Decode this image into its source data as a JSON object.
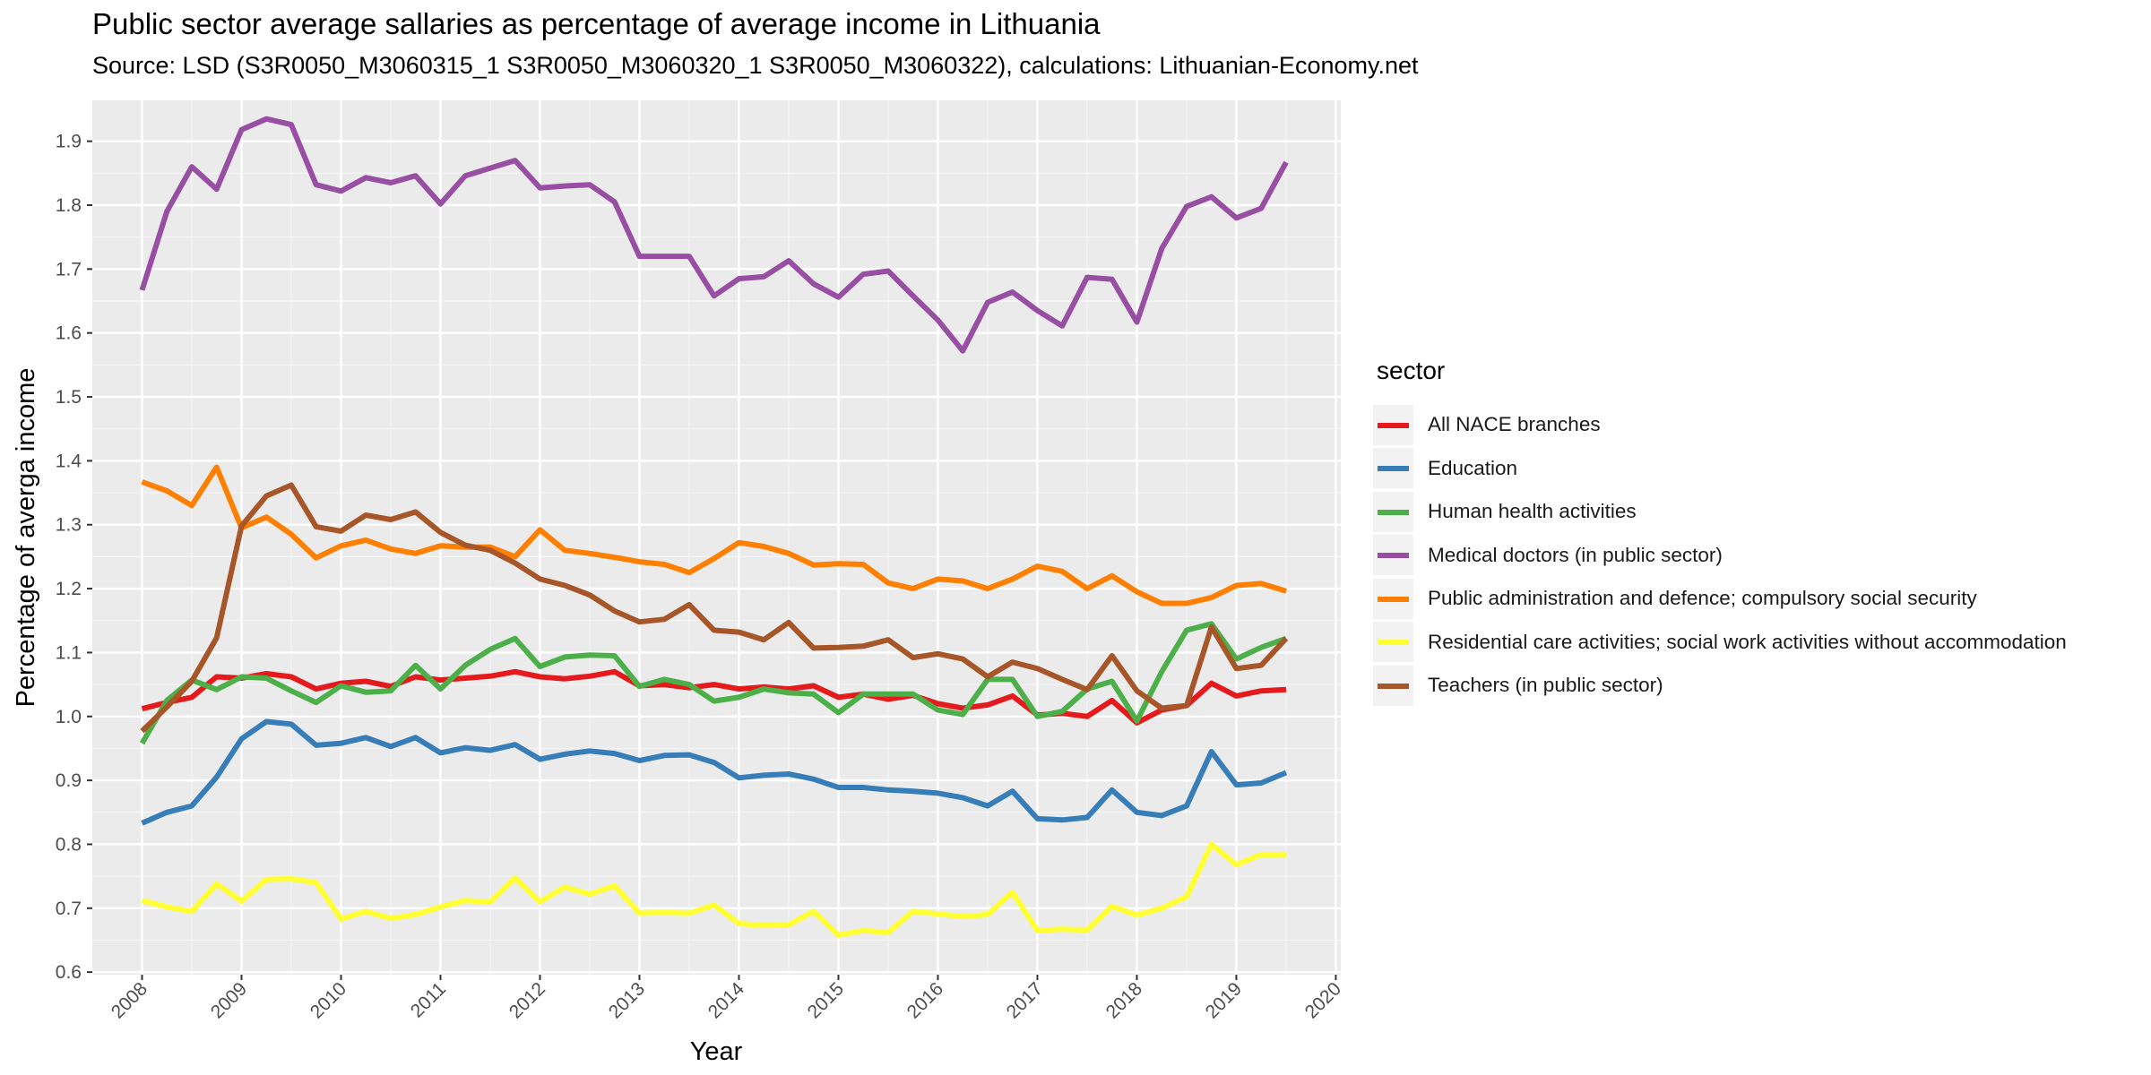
{
  "chart_data": {
    "type": "line",
    "title": "Public sector average sallaries as percentage of average income in Lithuania",
    "subtitle": "Source: LSD (S3R0050_M3060315_1 S3R0050_M3060320_1 S3R0050_M3060322), calculations: Lithuanian-Economy.net",
    "xlabel": "Year",
    "ylabel": "Percentage of averga income",
    "legend_title": "sector",
    "legend_position": "right",
    "grid": true,
    "xlim": [
      2007.5,
      2020.05
    ],
    "ylim": [
      0.596,
      1.964
    ],
    "x_ticks": [
      2008,
      2009,
      2010,
      2011,
      2012,
      2013,
      2014,
      2015,
      2016,
      2017,
      2018,
      2019,
      2020
    ],
    "y_ticks": [
      0.6,
      0.7,
      0.8,
      0.9,
      1.0,
      1.1,
      1.2,
      1.3,
      1.4,
      1.5,
      1.6,
      1.7,
      1.8,
      1.9
    ],
    "x_start": 2008,
    "x_step": 0.25,
    "series": [
      {
        "name": "All NACE branches",
        "color": "#e41a1c",
        "values": [
          1.012,
          1.022,
          1.03,
          1.062,
          1.06,
          1.067,
          1.062,
          1.043,
          1.052,
          1.055,
          1.047,
          1.062,
          1.057,
          1.06,
          1.063,
          1.07,
          1.062,
          1.059,
          1.063,
          1.07,
          1.048,
          1.05,
          1.045,
          1.05,
          1.043,
          1.046,
          1.043,
          1.048,
          1.03,
          1.035,
          1.027,
          1.033,
          1.02,
          1.013,
          1.018,
          1.032,
          1.002,
          1.005,
          1.0,
          1.025,
          0.99,
          1.01,
          1.017,
          1.052,
          1.032,
          1.04,
          1.042
        ]
      },
      {
        "name": "Education",
        "color": "#377eb8",
        "values": [
          0.833,
          0.85,
          0.86,
          0.905,
          0.965,
          0.992,
          0.988,
          0.955,
          0.958,
          0.967,
          0.953,
          0.967,
          0.943,
          0.951,
          0.947,
          0.956,
          0.933,
          0.941,
          0.946,
          0.942,
          0.931,
          0.939,
          0.94,
          0.928,
          0.904,
          0.908,
          0.91,
          0.902,
          0.889,
          0.889,
          0.885,
          0.883,
          0.88,
          0.873,
          0.86,
          0.883,
          0.84,
          0.838,
          0.842,
          0.885,
          0.85,
          0.845,
          0.86,
          0.945,
          0.893,
          0.896,
          0.912
        ]
      },
      {
        "name": "Human health activities",
        "color": "#4daf4a",
        "values": [
          0.958,
          1.025,
          1.057,
          1.042,
          1.062,
          1.06,
          1.04,
          1.022,
          1.048,
          1.038,
          1.04,
          1.08,
          1.043,
          1.08,
          1.105,
          1.122,
          1.078,
          1.093,
          1.096,
          1.095,
          1.047,
          1.058,
          1.05,
          1.024,
          1.03,
          1.043,
          1.037,
          1.035,
          1.006,
          1.035,
          1.035,
          1.035,
          1.01,
          1.003,
          1.058,
          1.058,
          1.0,
          1.008,
          1.043,
          1.055,
          0.993,
          1.07,
          1.135,
          1.145,
          1.09,
          1.108,
          1.122
        ]
      },
      {
        "name": "Medical doctors (in public sector)",
        "color": "#984ea3",
        "values": [
          1.667,
          1.79,
          1.86,
          1.825,
          1.918,
          1.935,
          1.926,
          1.832,
          1.822,
          1.843,
          1.835,
          1.846,
          1.802,
          1.846,
          1.858,
          1.87,
          1.827,
          1.83,
          1.832,
          1.805,
          1.72,
          1.72,
          1.72,
          1.658,
          1.685,
          1.688,
          1.713,
          1.677,
          1.656,
          1.692,
          1.697,
          1.658,
          1.62,
          1.572,
          1.648,
          1.664,
          1.635,
          1.611,
          1.687,
          1.684,
          1.617,
          1.732,
          1.798,
          1.813,
          1.78,
          1.795,
          1.867
        ]
      },
      {
        "name": "Public administration and defence; compulsory social security",
        "color": "#ff7f00",
        "values": [
          1.367,
          1.353,
          1.33,
          1.39,
          1.295,
          1.312,
          1.285,
          1.248,
          1.267,
          1.276,
          1.262,
          1.255,
          1.267,
          1.265,
          1.265,
          1.25,
          1.292,
          1.26,
          1.255,
          1.249,
          1.242,
          1.238,
          1.225,
          1.247,
          1.272,
          1.266,
          1.255,
          1.237,
          1.239,
          1.238,
          1.209,
          1.2,
          1.215,
          1.212,
          1.2,
          1.215,
          1.235,
          1.227,
          1.2,
          1.22,
          1.195,
          1.177,
          1.177,
          1.186,
          1.205,
          1.208,
          1.196
        ]
      },
      {
        "name": "Residential care activities; social work activities without accommodation",
        "color": "#ffff33",
        "values": [
          0.712,
          0.702,
          0.695,
          0.738,
          0.711,
          0.745,
          0.746,
          0.74,
          0.683,
          0.695,
          0.684,
          0.69,
          0.702,
          0.712,
          0.71,
          0.747,
          0.71,
          0.733,
          0.722,
          0.735,
          0.692,
          0.693,
          0.692,
          0.705,
          0.676,
          0.673,
          0.674,
          0.695,
          0.658,
          0.665,
          0.662,
          0.695,
          0.691,
          0.687,
          0.69,
          0.725,
          0.665,
          0.667,
          0.666,
          0.703,
          0.689,
          0.7,
          0.718,
          0.8,
          0.768,
          0.784,
          0.784
        ]
      },
      {
        "name": "Teachers (in public sector)",
        "color": "#a65628",
        "values": [
          0.977,
          1.015,
          1.055,
          1.123,
          1.298,
          1.345,
          1.362,
          1.297,
          1.29,
          1.315,
          1.308,
          1.32,
          1.288,
          1.268,
          1.26,
          1.24,
          1.215,
          1.205,
          1.19,
          1.165,
          1.148,
          1.152,
          1.175,
          1.135,
          1.132,
          1.12,
          1.147,
          1.107,
          1.108,
          1.11,
          1.12,
          1.092,
          1.098,
          1.09,
          1.062,
          1.085,
          1.075,
          1.058,
          1.042,
          1.095,
          1.04,
          1.013,
          1.017,
          1.14,
          1.075,
          1.08,
          1.122
        ]
      }
    ]
  }
}
